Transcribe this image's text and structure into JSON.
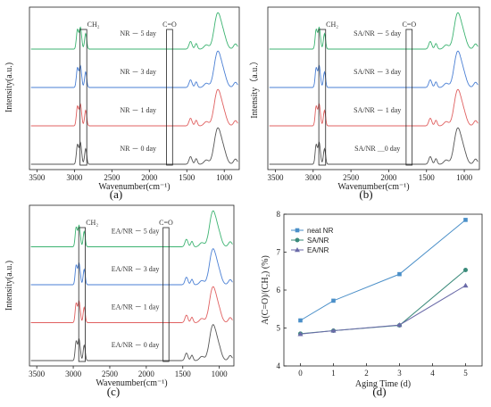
{
  "chart_data": [
    {
      "type": "line",
      "panel_label": "(a)",
      "xlabel": "Wavenumber(cm⁻¹)",
      "ylabel": "Intensity(a.u.)",
      "xlim": [
        3600,
        800
      ],
      "x_ticks": [
        3500,
        3000,
        2500,
        2000,
        1500,
        1000
      ],
      "series": [
        {
          "name": "NR － 5 day",
          "color": "#3cb371"
        },
        {
          "name": "NR － 3 day",
          "color": "#4a7fd4"
        },
        {
          "name": "NR － 1 day",
          "color": "#e06060"
        },
        {
          "name": "NR － 0 day",
          "color": "#555555"
        }
      ],
      "annotations": [
        "CH₂",
        "C=O"
      ]
    },
    {
      "type": "line",
      "panel_label": "(b)",
      "xlabel": "Wavenumber(cm⁻¹)",
      "ylabel": "Intensity（a.u.）",
      "xlim": [
        3600,
        800
      ],
      "x_ticks": [
        3500,
        3000,
        2500,
        2000,
        1500,
        1000
      ],
      "series": [
        {
          "name": "SA/NR － 5 day",
          "color": "#3cb371"
        },
        {
          "name": "SA/NR － 3 day",
          "color": "#4a7fd4"
        },
        {
          "name": "SA/NR － 1 day",
          "color": "#e06060"
        },
        {
          "name": "SA/NR ＿0 day",
          "color": "#555555"
        }
      ],
      "annotations": [
        "CH₂",
        "C=O"
      ]
    },
    {
      "type": "line",
      "panel_label": "(c)",
      "xlabel": "Wavenumber(cm⁻¹)",
      "ylabel": "Intensity(a.u.)",
      "xlim": [
        3600,
        800
      ],
      "x_ticks": [
        3500,
        3000,
        2500,
        2000,
        1500,
        1000
      ],
      "series": [
        {
          "name": "EA/NR － 5 day",
          "color": "#3cb371"
        },
        {
          "name": "EA/NR － 3 day",
          "color": "#4a7fd4"
        },
        {
          "name": "EA/NR － 1 day",
          "color": "#e06060"
        },
        {
          "name": "EA/NR － 0 day",
          "color": "#555555"
        }
      ],
      "annotations": [
        "CH₂",
        "C=O"
      ]
    },
    {
      "type": "line",
      "panel_label": "(d)",
      "xlabel": "Aging Time (d)",
      "ylabel": "A(C=O)/(CH₂) (%)",
      "xlim": [
        -0.5,
        5.5
      ],
      "ylim": [
        4,
        8
      ],
      "x": [
        0,
        1,
        3,
        5
      ],
      "x_ticks": [
        0,
        1,
        2,
        3,
        4,
        5
      ],
      "y_ticks": [
        4,
        5,
        6,
        7,
        8
      ],
      "legend": "top-left",
      "series": [
        {
          "name": "neat NR",
          "marker": "square",
          "color": "#4a8fc8",
          "values": [
            5.2,
            5.72,
            6.42,
            7.85
          ]
        },
        {
          "name": "SA/NR",
          "marker": "circle",
          "color": "#3a8a7a",
          "values": [
            4.85,
            4.93,
            5.07,
            6.53
          ]
        },
        {
          "name": "EA/NR",
          "marker": "triangle",
          "color": "#6a6aa8",
          "values": [
            4.84,
            4.93,
            5.08,
            6.12
          ]
        }
      ]
    }
  ]
}
